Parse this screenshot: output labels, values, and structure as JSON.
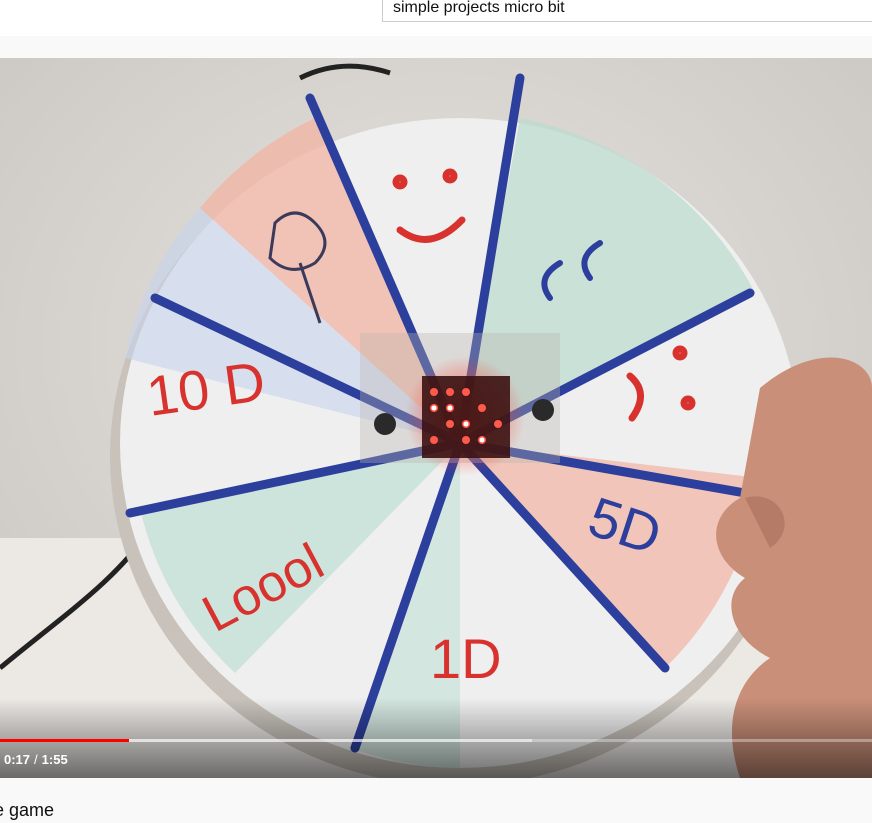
{
  "search": {
    "query": "simple projects micro bit"
  },
  "player": {
    "current_time": "0:17",
    "separator": "/",
    "duration": "1:55",
    "progress": 0.148,
    "buffered": 0.61,
    "accent_color": "#ff0000"
  },
  "video": {
    "title": "e game"
  },
  "wheel": {
    "segment_labels": [
      "10 D",
      "Loool",
      "1D",
      "5D",
      "cc"
    ],
    "colors": {
      "ink_red": "#d8322e",
      "ink_blue": "#2c3f9c",
      "ink_green": "#6fb59a"
    }
  }
}
